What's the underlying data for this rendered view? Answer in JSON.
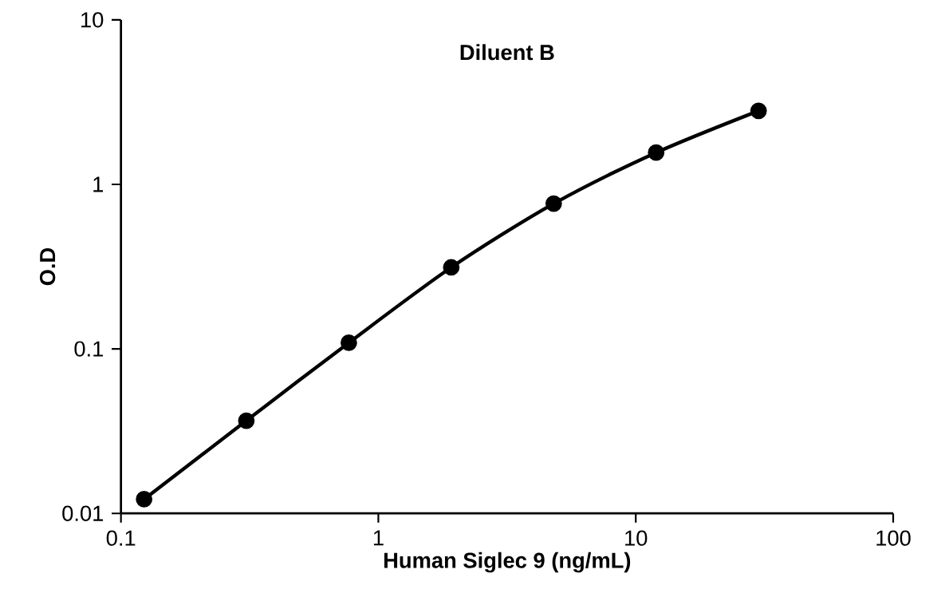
{
  "chart_data": {
    "type": "line",
    "title": "Diluent B",
    "xlabel": "Human Siglec 9 (ng/mL)",
    "ylabel": "O.D",
    "log": "xy",
    "x": [
      0.123,
      0.307,
      0.768,
      1.92,
      4.8,
      12,
      30
    ],
    "series": [
      {
        "color": "#000000",
        "values": [
          0.0122,
          0.0366,
          0.109,
          0.313,
          0.764,
          1.56,
          2.8
        ]
      }
    ],
    "xlim": [
      0.1,
      100
    ],
    "ylim": [
      0.01,
      10
    ],
    "xticks": [
      0.1,
      1,
      10,
      100
    ],
    "yticks": [
      0.01,
      0.1,
      1,
      10
    ],
    "marker": "circle",
    "line_style": "solid"
  }
}
